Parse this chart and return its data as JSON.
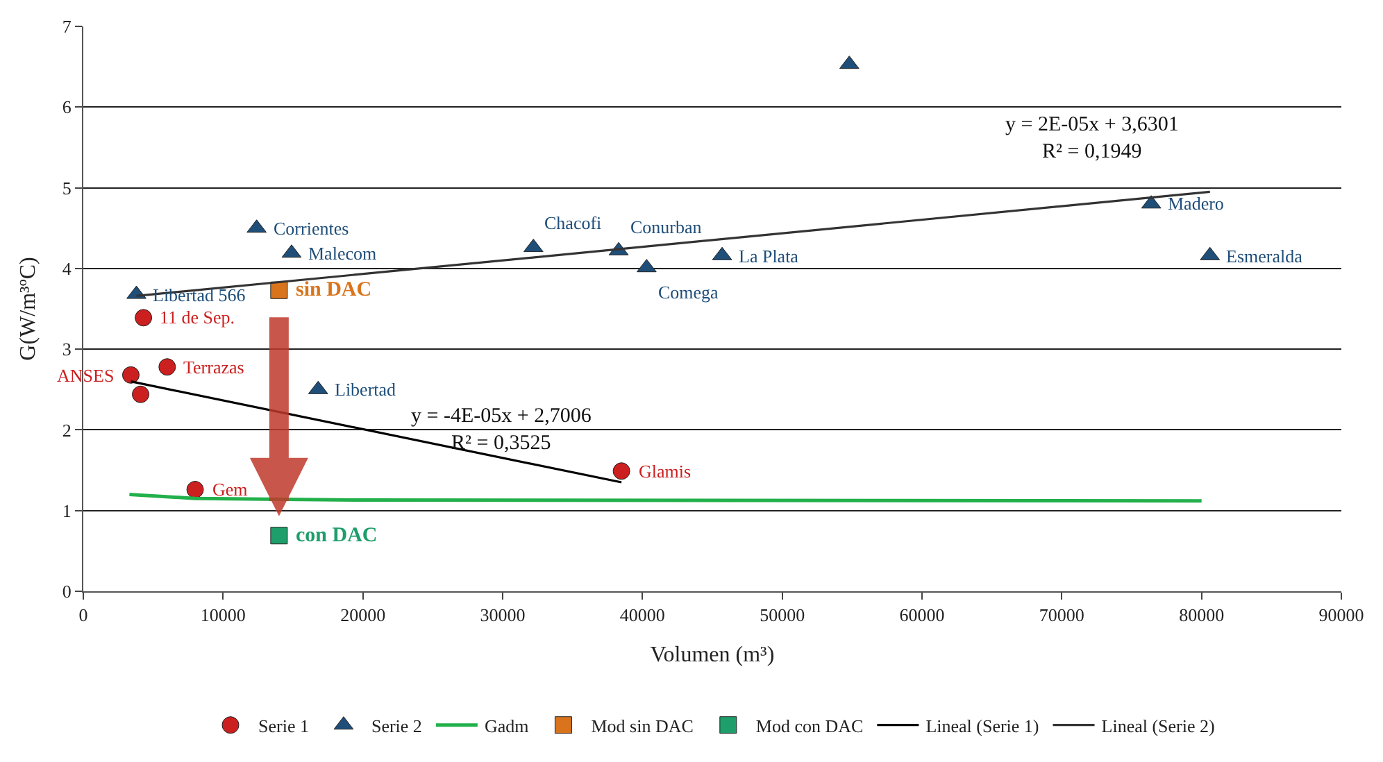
{
  "chart_data": {
    "type": "scatter",
    "xlabel": "Volumen (m³)",
    "ylabel": "G(W/m³ºC)",
    "xlim": [
      0,
      90000
    ],
    "xticks": [
      0,
      10000,
      20000,
      30000,
      40000,
      50000,
      60000,
      70000,
      80000,
      90000
    ],
    "ylim": [
      0,
      7
    ],
    "yticks": [
      0,
      1,
      2,
      3,
      4,
      5,
      6,
      7
    ],
    "grid": "y",
    "legend": "bottom",
    "series": [
      {
        "name": "Serie 1",
        "marker": "circle",
        "color": "#cc1f1f",
        "x": [
          4300,
          3400,
          6000,
          4100,
          8000,
          38500
        ],
        "values": [
          3.39,
          2.68,
          2.78,
          2.44,
          1.26,
          1.49
        ]
      },
      {
        "name": "Serie 2",
        "marker": "triangle",
        "color": "#1f4e79",
        "x": [
          3800,
          12400,
          14900,
          32200,
          16800,
          54800,
          38300,
          40300,
          45700,
          76400,
          80600
        ],
        "values": [
          3.68,
          4.5,
          4.19,
          4.26,
          2.5,
          6.53,
          4.22,
          4.01,
          4.16,
          4.8,
          4.16
        ]
      },
      {
        "name": "Gadm",
        "type": "line",
        "color": "#22b04b",
        "x": [
          3300,
          8000,
          20000,
          80000
        ],
        "values": [
          1.2,
          1.15,
          1.13,
          1.12
        ]
      },
      {
        "name": "Mod sin DAC",
        "marker": "square",
        "color": "#d9741c",
        "x": [
          14000
        ],
        "values": [
          3.73
        ]
      },
      {
        "name": "Mod con DAC",
        "marker": "square",
        "color": "#1e9e6a",
        "x": [
          14000
        ],
        "values": [
          0.69
        ]
      },
      {
        "name": "Lineal (Serie 1)",
        "type": "line",
        "color": "#000000",
        "x": [
          3400,
          38500
        ],
        "values": [
          2.6,
          1.35
        ]
      },
      {
        "name": "Lineal (Serie 2)",
        "type": "line",
        "color": "#333333",
        "x": [
          3800,
          80600
        ],
        "values": [
          3.66,
          4.95
        ]
      }
    ],
    "annotations": [
      {
        "text": "11 de Sep.",
        "x": 4300,
        "y": 3.39
      },
      {
        "text": "ANSES",
        "x": 3400,
        "y": 2.68
      },
      {
        "text": "Terrazas",
        "x": 6000,
        "y": 2.78
      },
      {
        "text": "Gem",
        "x": 8000,
        "y": 1.26
      },
      {
        "text": "Glamis",
        "x": 38500,
        "y": 1.49
      },
      {
        "text": "Libertad 566",
        "x": 3800,
        "y": 3.68
      },
      {
        "text": "Corrientes",
        "x": 12400,
        "y": 4.5
      },
      {
        "text": "Malecom",
        "x": 14900,
        "y": 4.19
      },
      {
        "text": "Chacofi",
        "x": 32200,
        "y": 4.26
      },
      {
        "text": "Libertad",
        "x": 16800,
        "y": 2.5
      },
      {
        "text": "Conurban",
        "x": 38300,
        "y": 4.22
      },
      {
        "text": "Comega",
        "x": 40300,
        "y": 4.01
      },
      {
        "text": "La Plata",
        "x": 45700,
        "y": 4.16
      },
      {
        "text": "Madero",
        "x": 76400,
        "y": 4.8
      },
      {
        "text": "Esmeralda",
        "x": 80600,
        "y": 4.16
      },
      {
        "text": "sin DAC",
        "x": 14000,
        "y": 3.73
      },
      {
        "text": "con DAC",
        "x": 14000,
        "y": 0.69
      },
      "y = 2E-05x + 3,6301\nR² = 0,1949",
      "y = -4E-05x + 2,7006\nR² = 0,3525"
    ]
  }
}
